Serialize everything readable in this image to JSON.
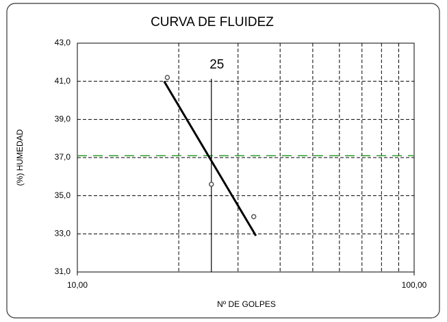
{
  "chart_data": {
    "type": "scatter",
    "title": "CURVA DE FLUIDEZ",
    "x_label": "Nº DE GOLPES",
    "y_label": "(%) HUMEDAD",
    "x": [
      18.5,
      25,
      33.4
    ],
    "values": [
      41.2,
      35.6,
      33.9
    ],
    "color": "#555555",
    "xlog": true,
    "xlim": [
      10,
      100
    ],
    "xticks": [
      {
        "value": 10,
        "label": "10,00"
      },
      {
        "value": 100,
        "label": "100,00"
      }
    ],
    "xminor": [
      20,
      30,
      40,
      50,
      60,
      70,
      80,
      90
    ],
    "ylim": [
      31,
      43
    ],
    "yticks": [
      {
        "value": 31,
        "label": "31,0"
      },
      {
        "value": 33,
        "label": "33,0"
      },
      {
        "value": 35,
        "label": "35,0"
      },
      {
        "value": 37,
        "label": "37,0"
      },
      {
        "value": 39,
        "label": "39,0"
      },
      {
        "value": 41,
        "label": "41,0"
      },
      {
        "value": 43,
        "label": "43,0"
      }
    ],
    "grid": true,
    "trendline": {
      "x": [
        18.1,
        33.9
      ],
      "values": [
        41.0,
        32.9
      ],
      "color": "#000000"
    },
    "vline": {
      "x": 25
    },
    "hline": {
      "y": 37.1,
      "color": "#2ca02c"
    }
  }
}
